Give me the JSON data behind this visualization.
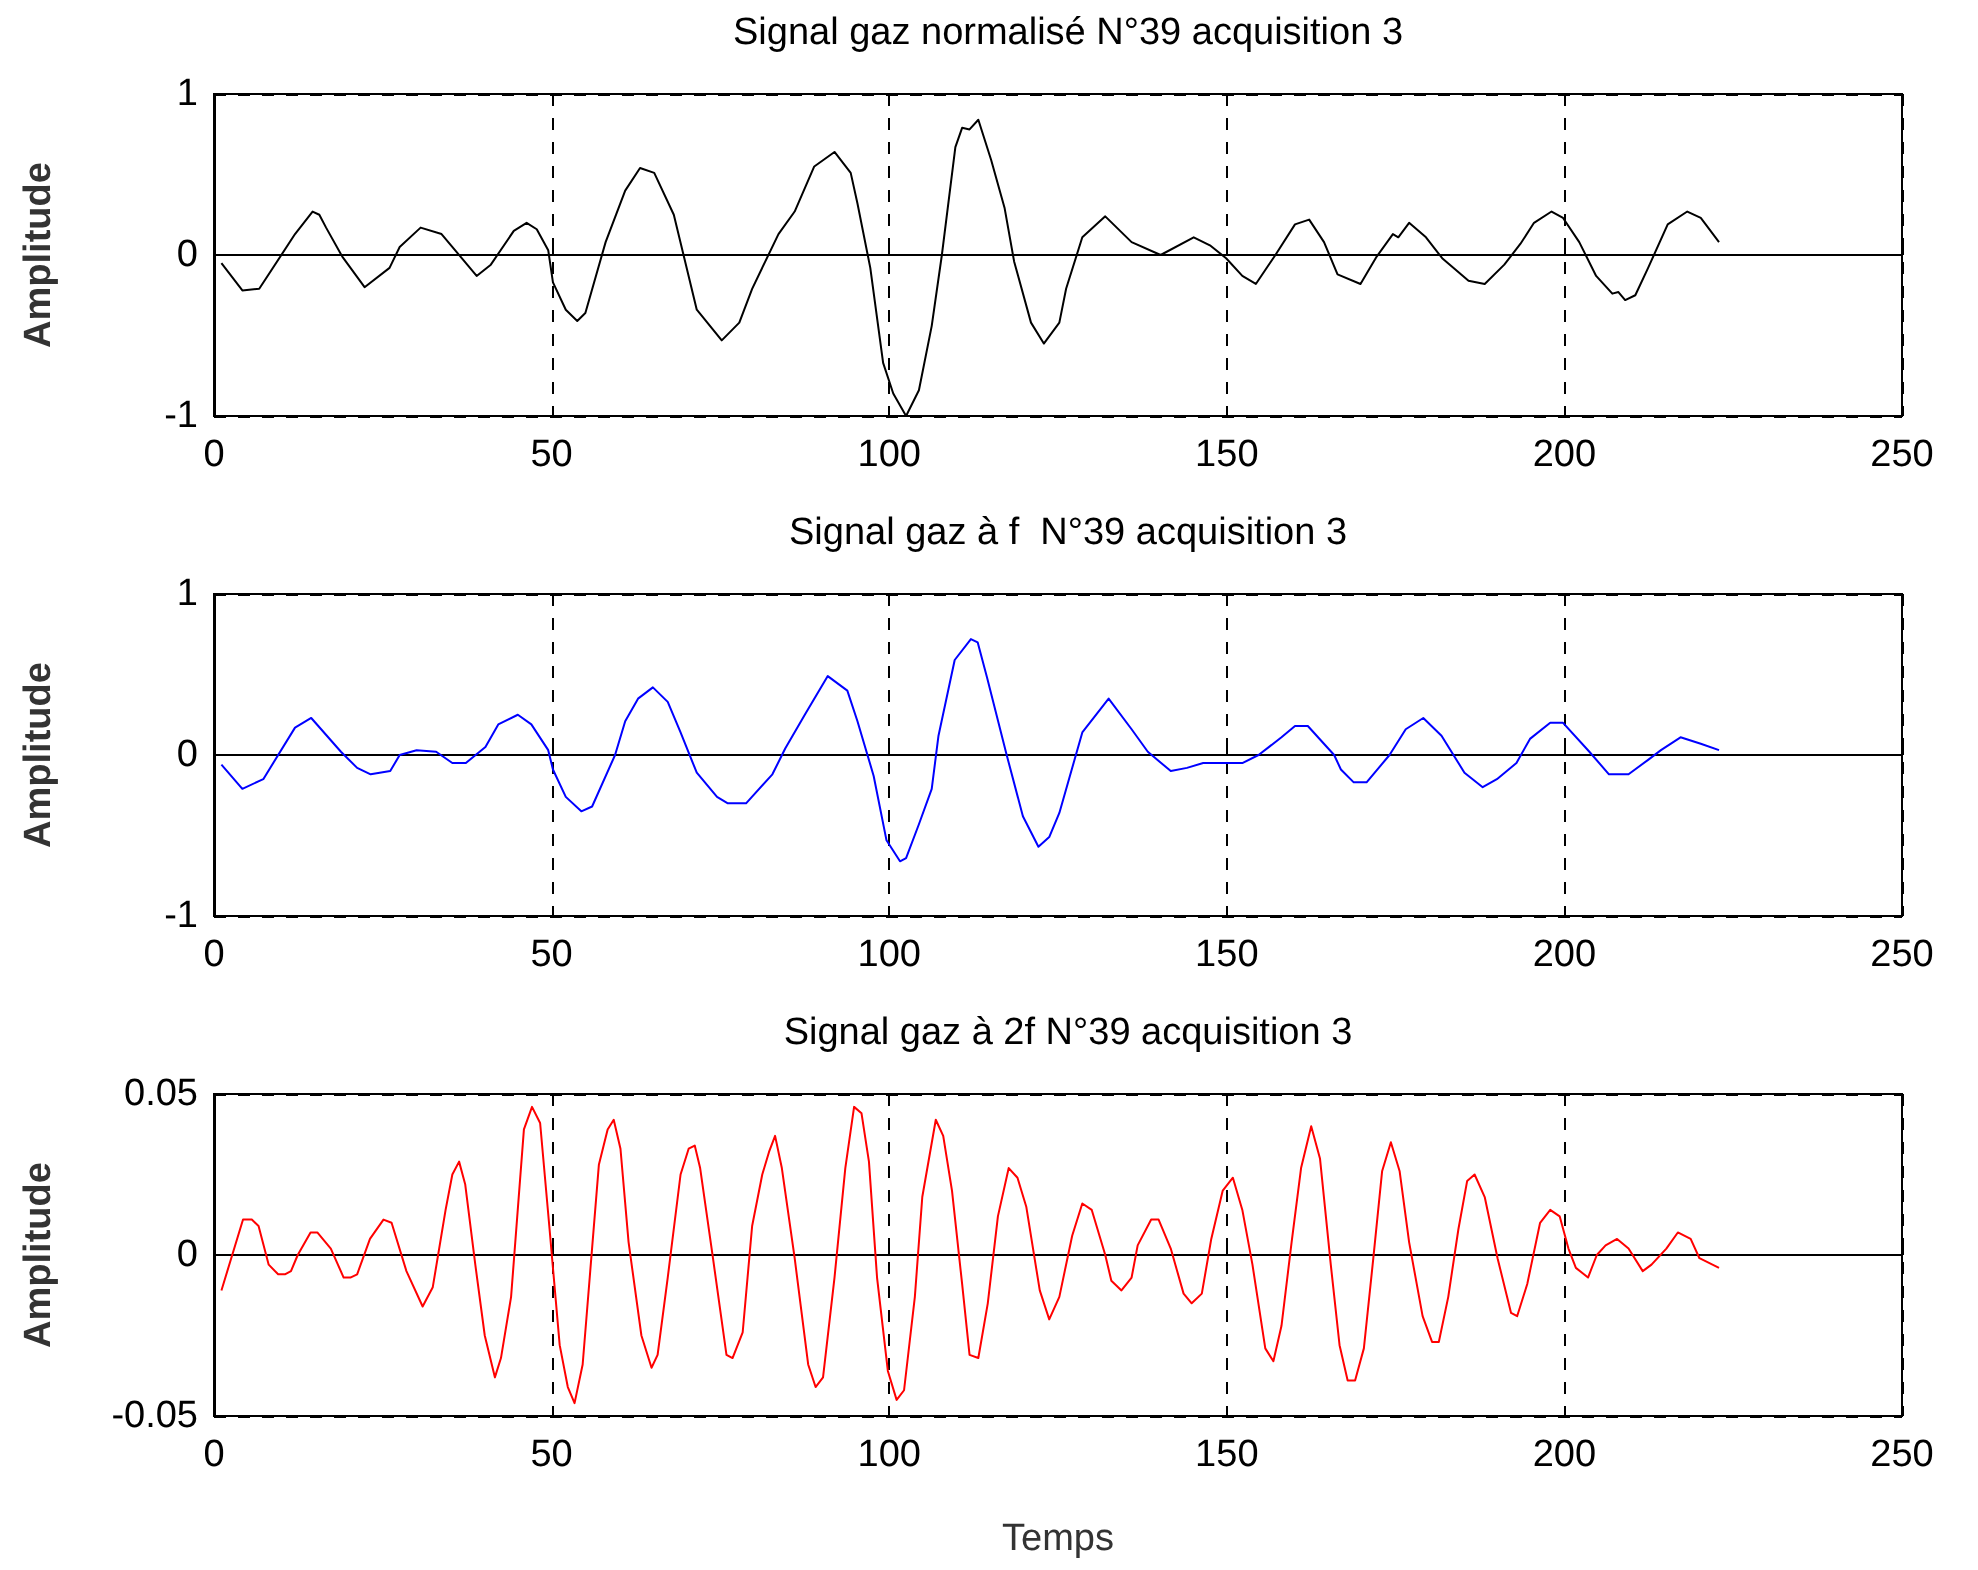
{
  "chart_data": [
    {
      "type": "line",
      "title": "Signal gaz normalisé N°39 acquisition 3",
      "ylabel": "Amplitude",
      "color": "#000000",
      "grid": true,
      "line_style": "solid",
      "xlim": [
        0,
        250
      ],
      "xticks": [
        0,
        50,
        100,
        150,
        200,
        250
      ],
      "ylim": [
        -1,
        1
      ],
      "yticks": [
        -1,
        0,
        1
      ],
      "x": [
        1.1,
        4.2,
        6.7,
        12,
        14.6,
        15.6,
        16.6,
        19,
        22.3,
        26,
        27.5,
        30.6,
        33.7,
        36.1,
        38.9,
        41,
        44.4,
        46.3,
        47.8,
        49.5,
        50.2,
        52.1,
        53.8,
        55,
        58,
        60.9,
        63.1,
        65.2,
        68.1,
        71.5,
        75.2,
        77.8,
        79.7,
        83.6,
        86,
        88.9,
        91.9,
        94.3,
        95.3,
        97.2,
        99.1,
        100.6,
        102.5,
        104.4,
        106.3,
        107.8,
        109.8,
        110.8,
        111.9,
        113.2,
        115.1,
        117.1,
        118.5,
        121,
        122.9,
        125.2,
        126.2,
        128.6,
        132,
        135.9,
        140.2,
        145.1,
        147.5,
        149.9,
        152.3,
        154.3,
        157.2,
        160.1,
        162.2,
        164.4,
        166.4,
        169.8,
        172.2,
        174.6,
        175.4,
        177,
        179.5,
        181.9,
        185.8,
        188.2,
        191.1,
        193.5,
        195.5,
        198.1,
        199.8,
        202.2,
        204.7,
        207.1,
        208,
        209,
        210.5,
        212.4,
        215.3,
        218.2,
        220.2,
        222.9
      ],
      "values": [
        -0.05,
        -0.22,
        -0.21,
        0.13,
        0.27,
        0.25,
        0.17,
        -0.01,
        -0.2,
        -0.08,
        0.05,
        0.17,
        0.13,
        0.01,
        -0.13,
        -0.06,
        0.15,
        0.2,
        0.16,
        0.03,
        -0.17,
        -0.34,
        -0.41,
        -0.36,
        0.08,
        0.4,
        0.54,
        0.51,
        0.25,
        -0.34,
        -0.53,
        -0.42,
        -0.21,
        0.13,
        0.27,
        0.55,
        0.64,
        0.51,
        0.32,
        -0.08,
        -0.67,
        -0.86,
        -1,
        -0.84,
        -0.44,
        0,
        0.67,
        0.79,
        0.78,
        0.84,
        0.59,
        0.29,
        -0.04,
        -0.42,
        -0.55,
        -0.42,
        -0.21,
        0.11,
        0.24,
        0.08,
        0,
        0.11,
        0.06,
        -0.02,
        -0.13,
        -0.18,
        0,
        0.19,
        0.22,
        0.08,
        -0.12,
        -0.18,
        -0.01,
        0.13,
        0.11,
        0.2,
        0.11,
        -0.02,
        -0.16,
        -0.18,
        -0.06,
        0.07,
        0.2,
        0.27,
        0.23,
        0.08,
        -0.13,
        -0.24,
        -0.23,
        -0.28,
        -0.25,
        -0.08,
        0.19,
        0.27,
        0.23,
        0.08
      ]
    },
    {
      "type": "line",
      "title": "Signal gaz à f  N°39 acquisition 3",
      "ylabel": "Amplitude",
      "color": "#0000ff",
      "grid": true,
      "line_style": "solid",
      "xlim": [
        0,
        250
      ],
      "xticks": [
        0,
        50,
        100,
        150,
        200,
        250
      ],
      "ylim": [
        -1,
        1
      ],
      "yticks": [
        -1,
        0,
        1
      ],
      "x": [
        1.1,
        4.2,
        7.3,
        12,
        14.4,
        18.8,
        21.2,
        23.2,
        26.1,
        27.5,
        30,
        32.9,
        35.3,
        37.3,
        40.2,
        42.1,
        45,
        47,
        49.5,
        50.2,
        52.1,
        54.4,
        56,
        59.4,
        60.9,
        62.8,
        65,
        67.2,
        69.1,
        71.5,
        74.5,
        76.1,
        78.8,
        82.7,
        84.6,
        87.5,
        90.9,
        93.8,
        95.3,
        97.7,
        99.6,
        101.6,
        102.5,
        104.4,
        106.3,
        107.3,
        109.7,
        112.1,
        113.1,
        114.5,
        117.4,
        119.8,
        122.1,
        123.7,
        125.2,
        128.6,
        132.5,
        135.9,
        138.3,
        141.7,
        144.1,
        146.5,
        152.3,
        154.7,
        158.1,
        160.1,
        162,
        165.9,
        166.9,
        168.8,
        170.7,
        174.1,
        176.5,
        179.1,
        181.8,
        185.2,
        187.9,
        190,
        192.9,
        194.9,
        197.9,
        199.8,
        203.7,
        206.6,
        209.5,
        212.4,
        214.3,
        217.2,
        220.2,
        222.9
      ],
      "values": [
        -0.06,
        -0.21,
        -0.15,
        0.17,
        0.23,
        0.02,
        -0.08,
        -0.12,
        -0.1,
        0,
        0.03,
        0.02,
        -0.05,
        -0.05,
        0.05,
        0.19,
        0.25,
        0.19,
        0.03,
        -0.09,
        -0.26,
        -0.35,
        -0.32,
        0,
        0.21,
        0.35,
        0.42,
        0.33,
        0.14,
        -0.11,
        -0.26,
        -0.3,
        -0.3,
        -0.12,
        0.04,
        0.25,
        0.49,
        0.4,
        0.21,
        -0.13,
        -0.53,
        -0.66,
        -0.64,
        -0.43,
        -0.21,
        0.12,
        0.59,
        0.72,
        0.7,
        0.48,
        0,
        -0.38,
        -0.57,
        -0.51,
        -0.36,
        0.14,
        0.35,
        0.16,
        0.02,
        -0.1,
        -0.08,
        -0.05,
        -0.05,
        0,
        0.11,
        0.18,
        0.18,
        0,
        -0.09,
        -0.17,
        -0.17,
        0,
        0.16,
        0.23,
        0.12,
        -0.11,
        -0.2,
        -0.15,
        -0.05,
        0.1,
        0.2,
        0.2,
        0.02,
        -0.12,
        -0.12,
        -0.03,
        0.03,
        0.11,
        0.07,
        0.03
      ]
    },
    {
      "type": "line",
      "title": "Signal gaz à 2f N°39 acquisition 3",
      "ylabel": "Amplitude",
      "xlabel": "Temps",
      "color": "#ff0000",
      "grid": true,
      "line_style": "solid",
      "xlim": [
        0,
        250
      ],
      "xticks": [
        0,
        50,
        100,
        150,
        200,
        250
      ],
      "ylim": [
        -0.05,
        0.05
      ],
      "yticks": [
        -0.05,
        0,
        0.05
      ],
      "x": [
        1.1,
        2.7,
        4.3,
        5.6,
        6.6,
        8.1,
        9.5,
        10.5,
        11.4,
        12.4,
        14.3,
        15.3,
        17.3,
        19.2,
        20.2,
        21.2,
        23.1,
        25.1,
        26.3,
        28.5,
        30.9,
        32.4,
        34.3,
        35.3,
        36.3,
        37.2,
        38.7,
        40.1,
        41.6,
        42.5,
        44,
        45.9,
        47.1,
        48.3,
        49.7,
        51.2,
        52.4,
        53.4,
        54.6,
        57,
        58.3,
        59.2,
        60.2,
        61.4,
        63.3,
        64.8,
        65.7,
        67.2,
        69.1,
        70.3,
        71.2,
        72,
        73.9,
        75.9,
        76.8,
        78.3,
        79.7,
        81.2,
        82.2,
        83.1,
        84.1,
        86,
        88,
        89.1,
        90.2,
        91.9,
        93.5,
        94.8,
        95.9,
        97,
        98.2,
        99.8,
        101.1,
        102.2,
        103.8,
        104.9,
        106.9,
        108,
        109.3,
        110.8,
        111.9,
        113.2,
        114.6,
        116.1,
        117.7,
        119,
        120.3,
        122.3,
        123.7,
        125.2,
        127.1,
        128.6,
        130,
        132,
        132.9,
        134.4,
        135.9,
        136.8,
        138.8,
        139.9,
        141.7,
        143.6,
        144.8,
        146.3,
        147.7,
        149.4,
        150.9,
        152.3,
        153.8,
        155.7,
        156.9,
        158.1,
        159.6,
        161,
        162.5,
        163.8,
        165.4,
        166.7,
        167.9,
        169,
        170.3,
        171.7,
        173,
        174.3,
        175.6,
        177,
        179,
        180.4,
        181.4,
        182.8,
        184.3,
        185.6,
        186.7,
        188.2,
        190.1,
        192.1,
        193,
        194.5,
        196.4,
        197.9,
        199.3,
        200.6,
        201.7,
        203.5,
        204.8,
        206.1,
        207.8,
        209.5,
        211.6,
        212.9,
        215.1,
        216.8,
        218.7,
        220,
        222.9
      ],
      "values": [
        -0.011,
        0,
        0.011,
        0.011,
        0.009,
        -0.003,
        -0.006,
        -0.006,
        -0.005,
        0,
        0.007,
        0.007,
        0.002,
        -0.007,
        -0.007,
        -0.006,
        0.005,
        0.011,
        0.01,
        -0.005,
        -0.016,
        -0.01,
        0.014,
        0.025,
        0.029,
        0.022,
        -0.003,
        -0.025,
        -0.038,
        -0.032,
        -0.013,
        0.039,
        0.046,
        0.041,
        0.008,
        -0.028,
        -0.041,
        -0.046,
        -0.034,
        0.028,
        0.039,
        0.042,
        0.033,
        0.004,
        -0.025,
        -0.035,
        -0.031,
        -0.007,
        0.025,
        0.033,
        0.034,
        0.027,
        -0.001,
        -0.031,
        -0.032,
        -0.024,
        0.009,
        0.025,
        0.032,
        0.037,
        0.027,
        -0.001,
        -0.034,
        -0.041,
        -0.038,
        -0.007,
        0.027,
        0.046,
        0.044,
        0.029,
        -0.007,
        -0.036,
        -0.045,
        -0.042,
        -0.013,
        0.018,
        0.042,
        0.037,
        0.02,
        -0.009,
        -0.031,
        -0.032,
        -0.015,
        0.012,
        0.027,
        0.024,
        0.015,
        -0.011,
        -0.02,
        -0.013,
        0.006,
        0.016,
        0.014,
        0,
        -0.008,
        -0.011,
        -0.007,
        0.003,
        0.011,
        0.011,
        0.002,
        -0.012,
        -0.015,
        -0.012,
        0.005,
        0.02,
        0.024,
        0.014,
        -0.003,
        -0.029,
        -0.033,
        -0.022,
        0.004,
        0.027,
        0.04,
        0.03,
        -0.003,
        -0.028,
        -0.039,
        -0.039,
        -0.029,
        -0.001,
        0.026,
        0.035,
        0.026,
        0.004,
        -0.019,
        -0.027,
        -0.027,
        -0.013,
        0.008,
        0.023,
        0.025,
        0.018,
        -0.001,
        -0.018,
        -0.019,
        -0.009,
        0.01,
        0.014,
        0.012,
        0.002,
        -0.004,
        -0.007,
        0,
        0.003,
        0.005,
        0.002,
        -0.005,
        -0.003,
        0.002,
        0.007,
        0.005,
        -0.001,
        -0.004
      ]
    }
  ]
}
